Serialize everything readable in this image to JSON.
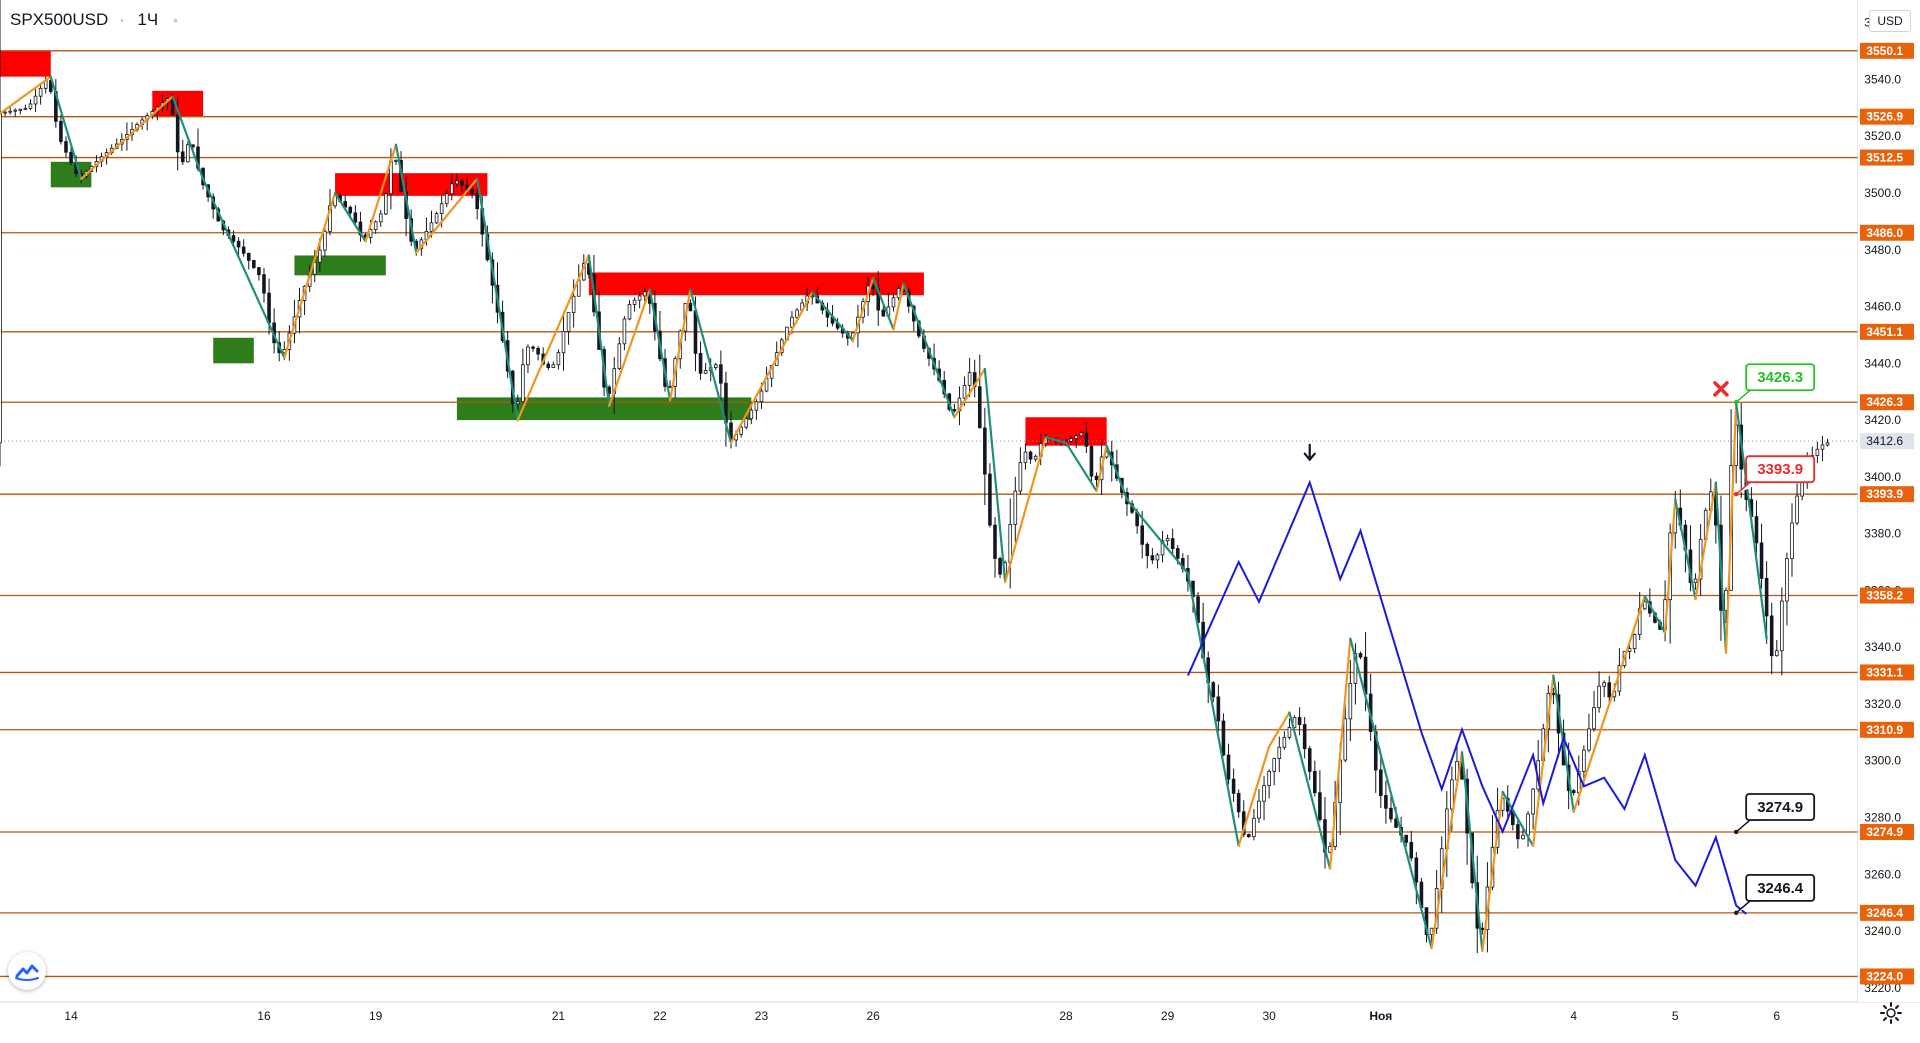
{
  "header": {
    "symbol": "SPX500USD",
    "separator": "·",
    "timeframe": "1Ч"
  },
  "currency_label": "USD",
  "icons": {
    "logo": "tradingview-logo-icon",
    "settings": "gear-icon",
    "cross": "cross-mark-icon",
    "arrow": "down-arrow-icon"
  },
  "colors": {
    "level_line": "#b8560c",
    "level_label_bg": "#e8620c",
    "current_price_bg": "#e0e3eb",
    "supply_zone": "#ff0000",
    "demand_zone": "#2e7d1a",
    "zigzag_up": "#f0961e",
    "zigzag_down": "#1f8f7a",
    "projection": "#1a1adc",
    "candle_up": "#ffffff",
    "candle_down": "#131722"
  },
  "chart_data": {
    "type": "candlestick",
    "symbol": "SPX500USD",
    "timeframe": "1Ч",
    "ylim": [
      3215,
      3568
    ],
    "xlim": [
      -5,
      178
    ],
    "y_ticks": [
      3220.0,
      3240.0,
      3260.0,
      3280.0,
      3300.0,
      3320.0,
      3340.0,
      3360.0,
      3380.0,
      3400.0,
      3420.0,
      3440.0,
      3460.0,
      3480.0,
      3500.0,
      3520.0,
      3540.0,
      3560.0
    ],
    "x_ticks": [
      {
        "label": "14",
        "x": 2
      },
      {
        "label": "16",
        "x": 21
      },
      {
        "label": "19",
        "x": 32
      },
      {
        "label": "21",
        "x": 50
      },
      {
        "label": "22",
        "x": 60
      },
      {
        "label": "23",
        "x": 70
      },
      {
        "label": "26",
        "x": 81
      },
      {
        "label": "28",
        "x": 100
      },
      {
        "label": "29",
        "x": 110
      },
      {
        "label": "30",
        "x": 120
      },
      {
        "label": "Ноя",
        "x": 131
      },
      {
        "label": "4",
        "x": 150
      },
      {
        "label": "5",
        "x": 160
      },
      {
        "label": "6",
        "x": 170
      }
    ],
    "levels": [
      3550.1,
      3526.9,
      3512.5,
      3486.0,
      3451.1,
      3426.3,
      3393.9,
      3358.2,
      3331.1,
      3310.9,
      3274.9,
      3246.4,
      3224.0
    ],
    "current_price": 3412.6,
    "supply_zones": [
      {
        "x0": -5,
        "x1": 0,
        "y0": 3541,
        "y1": 3550
      },
      {
        "x0": 10,
        "x1": 15,
        "y0": 3527,
        "y1": 3536
      },
      {
        "x0": 28,
        "x1": 43,
        "y0": 3499,
        "y1": 3507
      },
      {
        "x0": 53,
        "x1": 86,
        "y0": 3464,
        "y1": 3472
      },
      {
        "x0": 96,
        "x1": 104,
        "y0": 3411,
        "y1": 3421
      }
    ],
    "demand_zones": [
      {
        "x0": 0,
        "x1": 4,
        "y0": 3502,
        "y1": 3511
      },
      {
        "x0": 16,
        "x1": 20,
        "y0": 3440,
        "y1": 3449
      },
      {
        "x0": 24,
        "x1": 33,
        "y0": 3471,
        "y1": 3478
      },
      {
        "x0": 40,
        "x1": 69,
        "y0": 3420,
        "y1": 3428
      }
    ],
    "price_path": [
      [
        -5,
        3528
      ],
      [
        -2,
        3530
      ],
      [
        0,
        3541
      ],
      [
        1,
        3520
      ],
      [
        3,
        3505
      ],
      [
        5,
        3512
      ],
      [
        7,
        3518
      ],
      [
        9,
        3525
      ],
      [
        12,
        3534
      ],
      [
        13,
        3508
      ],
      [
        14,
        3520
      ],
      [
        15,
        3505
      ],
      [
        17,
        3488
      ],
      [
        19,
        3480
      ],
      [
        21,
        3470
      ],
      [
        22,
        3449
      ],
      [
        23,
        3442
      ],
      [
        25,
        3465
      ],
      [
        27,
        3482
      ],
      [
        28,
        3500
      ],
      [
        30,
        3492
      ],
      [
        31,
        3483
      ],
      [
        33,
        3494
      ],
      [
        34,
        3517
      ],
      [
        35,
        3495
      ],
      [
        36,
        3479
      ],
      [
        38,
        3491
      ],
      [
        40,
        3505
      ],
      [
        41,
        3502
      ],
      [
        42,
        3499
      ],
      [
        44,
        3463
      ],
      [
        45,
        3443
      ],
      [
        46,
        3420
      ],
      [
        47,
        3446
      ],
      [
        48,
        3445
      ],
      [
        49,
        3438
      ],
      [
        50,
        3440
      ],
      [
        51,
        3455
      ],
      [
        53,
        3478
      ],
      [
        55,
        3425
      ],
      [
        57,
        3460
      ],
      [
        59,
        3466
      ],
      [
        61,
        3427
      ],
      [
        63,
        3466
      ],
      [
        64,
        3436
      ],
      [
        66,
        3440
      ],
      [
        67,
        3412
      ],
      [
        68,
        3416
      ],
      [
        70,
        3428
      ],
      [
        73,
        3455
      ],
      [
        75,
        3465
      ],
      [
        77,
        3455
      ],
      [
        79,
        3448
      ],
      [
        81,
        3470
      ],
      [
        82,
        3455
      ],
      [
        84,
        3468
      ],
      [
        86,
        3447
      ],
      [
        87,
        3440
      ],
      [
        88,
        3432
      ],
      [
        89,
        3421
      ],
      [
        90,
        3430
      ],
      [
        91,
        3439
      ],
      [
        92,
        3410
      ],
      [
        93,
        3374
      ],
      [
        94,
        3363
      ],
      [
        95,
        3390
      ],
      [
        96,
        3410
      ],
      [
        97,
        3405
      ],
      [
        98,
        3414
      ],
      [
        100,
        3412
      ],
      [
        102,
        3416
      ],
      [
        103,
        3395
      ],
      [
        104,
        3411
      ],
      [
        105,
        3402
      ],
      [
        106,
        3392
      ],
      [
        107,
        3386
      ],
      [
        108,
        3373
      ],
      [
        109,
        3370
      ],
      [
        110,
        3380
      ],
      [
        112,
        3366
      ],
      [
        113,
        3355
      ],
      [
        114,
        3330
      ],
      [
        115,
        3320
      ],
      [
        116,
        3296
      ],
      [
        117,
        3286
      ],
      [
        118,
        3270
      ],
      [
        119,
        3283
      ],
      [
        120,
        3294
      ],
      [
        121,
        3303
      ],
      [
        122,
        3310
      ],
      [
        123,
        3317
      ],
      [
        124,
        3300
      ],
      [
        125,
        3285
      ],
      [
        126,
        3262
      ],
      [
        127,
        3293
      ],
      [
        128,
        3322
      ],
      [
        129,
        3343
      ],
      [
        130,
        3317
      ],
      [
        131,
        3290
      ],
      [
        132,
        3281
      ],
      [
        133,
        3275
      ],
      [
        134,
        3270
      ],
      [
        135,
        3253
      ],
      [
        136,
        3234
      ],
      [
        137,
        3262
      ],
      [
        138,
        3290
      ],
      [
        139,
        3303
      ],
      [
        140,
        3265
      ],
      [
        141,
        3233
      ],
      [
        142,
        3263
      ],
      [
        143,
        3289
      ],
      [
        144,
        3280
      ],
      [
        145,
        3270
      ],
      [
        146,
        3285
      ],
      [
        147,
        3305
      ],
      [
        148,
        3330
      ],
      [
        149,
        3303
      ],
      [
        150,
        3285
      ],
      [
        151,
        3300
      ],
      [
        152,
        3315
      ],
      [
        153,
        3330
      ],
      [
        154,
        3320
      ],
      [
        155,
        3338
      ],
      [
        156,
        3340
      ],
      [
        157,
        3358
      ],
      [
        158,
        3350
      ],
      [
        159,
        3345
      ],
      [
        160,
        3392
      ],
      [
        161,
        3380
      ],
      [
        162,
        3357
      ],
      [
        163,
        3385
      ],
      [
        164,
        3398
      ],
      [
        165,
        3338
      ],
      [
        166,
        3426
      ],
      [
        167,
        3395
      ],
      [
        168,
        3383
      ],
      [
        169,
        3358
      ],
      [
        170,
        3330
      ],
      [
        171,
        3365
      ],
      [
        172,
        3390
      ],
      [
        173,
        3403
      ],
      [
        174,
        3409
      ],
      [
        175,
        3412
      ]
    ],
    "zigzag": [
      [
        -5,
        3528
      ],
      [
        0,
        3541
      ],
      [
        3,
        3505
      ],
      [
        12,
        3534
      ],
      [
        15,
        3505
      ],
      [
        23,
        3442
      ],
      [
        28,
        3500
      ],
      [
        31,
        3483
      ],
      [
        34,
        3517
      ],
      [
        36,
        3479
      ],
      [
        42,
        3505
      ],
      [
        46,
        3420
      ],
      [
        53,
        3478
      ],
      [
        55,
        3425
      ],
      [
        59,
        3466
      ],
      [
        61,
        3427
      ],
      [
        63,
        3466
      ],
      [
        67,
        3412
      ],
      [
        75,
        3465
      ],
      [
        79,
        3448
      ],
      [
        81,
        3470
      ],
      [
        83,
        3452
      ],
      [
        84,
        3468
      ],
      [
        89,
        3421
      ],
      [
        92,
        3438
      ],
      [
        94,
        3363
      ],
      [
        98,
        3414
      ],
      [
        100,
        3412
      ],
      [
        103,
        3395
      ],
      [
        104,
        3411
      ],
      [
        106,
        3392
      ],
      [
        112,
        3366
      ],
      [
        117,
        3270
      ],
      [
        120,
        3305
      ],
      [
        122,
        3317
      ],
      [
        126,
        3262
      ],
      [
        128,
        3343
      ],
      [
        136,
        3234
      ],
      [
        139,
        3303
      ],
      [
        141,
        3233
      ],
      [
        143,
        3289
      ],
      [
        146,
        3270
      ],
      [
        148,
        3330
      ],
      [
        150,
        3282
      ],
      [
        157,
        3358
      ],
      [
        159,
        3345
      ],
      [
        160,
        3392
      ],
      [
        162,
        3357
      ],
      [
        164,
        3398
      ],
      [
        165,
        3338
      ],
      [
        166,
        3426
      ],
      [
        169,
        3343
      ]
    ],
    "projection": [
      [
        112,
        3330
      ],
      [
        117,
        3370
      ],
      [
        119,
        3356
      ],
      [
        124,
        3398
      ],
      [
        127,
        3364
      ],
      [
        129,
        3381
      ],
      [
        135,
        3310
      ],
      [
        137,
        3290
      ],
      [
        139,
        3311
      ],
      [
        141,
        3291
      ],
      [
        143,
        3275
      ],
      [
        146,
        3302
      ],
      [
        147,
        3285
      ],
      [
        149,
        3308
      ],
      [
        151,
        3291
      ],
      [
        153,
        3294
      ],
      [
        155,
        3283
      ],
      [
        157,
        3302
      ],
      [
        160,
        3265
      ],
      [
        162,
        3256
      ],
      [
        164,
        3273
      ],
      [
        166,
        3249
      ],
      [
        167,
        3246
      ]
    ],
    "callouts": [
      {
        "label": "3426.3",
        "x": 166,
        "y": 3426.3,
        "color": "#21c421",
        "text_color": "#21c421"
      },
      {
        "label": "3393.9",
        "x": 166,
        "y": 3393.9,
        "color": "#ee2b2b",
        "text_color": "#ee2b2b"
      },
      {
        "label": "3274.9",
        "x": 166,
        "y": 3274.9,
        "color": "#131722",
        "text_color": "#131722"
      },
      {
        "label": "3246.4",
        "x": 166,
        "y": 3246.4,
        "color": "#131722",
        "text_color": "#131722"
      }
    ],
    "cross_marker": {
      "x": 164.5,
      "y": 3431
    },
    "down_arrow": {
      "x": 124,
      "y": 3405
    }
  }
}
